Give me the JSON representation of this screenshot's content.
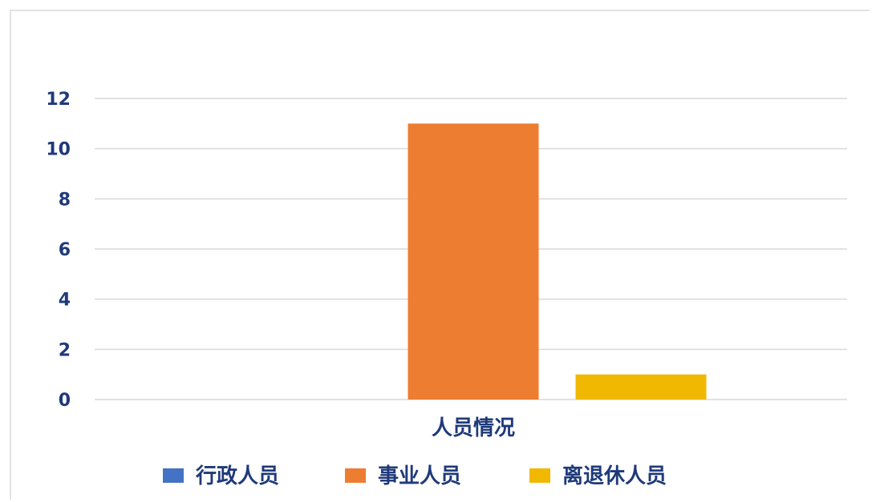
{
  "chart_data": {
    "type": "bar",
    "title": "",
    "xlabel": "",
    "ylabel": "",
    "categories": [
      "人员情况"
    ],
    "series": [
      {
        "name": "行政人员",
        "values": [
          0
        ],
        "color": "#4472c4"
      },
      {
        "name": "事业人员",
        "values": [
          11
        ],
        "color": "#ed7d31"
      },
      {
        "name": "离退休人员",
        "values": [
          1
        ],
        "color": "#f0b800"
      }
    ],
    "ylim": [
      0,
      12
    ],
    "yticks": [
      0,
      2,
      4,
      6,
      8,
      10,
      12
    ],
    "grid": true,
    "legend": "bottom"
  }
}
